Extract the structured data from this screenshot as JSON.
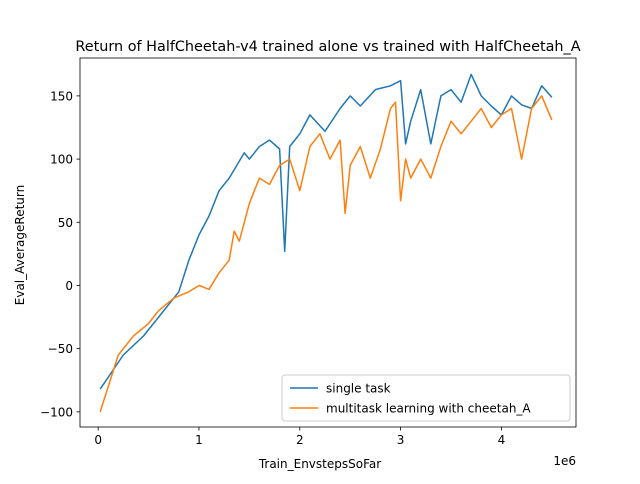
{
  "chart_data": {
    "type": "line",
    "title": "Return of HalfCheetah-v4 trained alone vs trained with HalfCheetah_A",
    "xlabel": "Train_EnvstepsSoFar",
    "ylabel": "Eval_AverageReturn",
    "x_offset_label": "1e6",
    "xlim": [
      -0.18,
      4.74
    ],
    "ylim": [
      -112,
      180
    ],
    "xticks": [
      0,
      1,
      2,
      3,
      4
    ],
    "yticks": [
      -100,
      -50,
      0,
      50,
      100,
      150
    ],
    "grid": false,
    "legend_position": "bottom-right",
    "series": [
      {
        "name": "single task",
        "color": "#1f77b4",
        "x": [
          0.02,
          0.25,
          0.45,
          0.6,
          0.8,
          0.9,
          1.0,
          1.1,
          1.2,
          1.3,
          1.45,
          1.5,
          1.6,
          1.7,
          1.8,
          1.85,
          1.9,
          2.0,
          2.1,
          2.25,
          2.4,
          2.5,
          2.6,
          2.75,
          2.9,
          3.0,
          3.05,
          3.1,
          3.2,
          3.3,
          3.4,
          3.5,
          3.6,
          3.7,
          3.8,
          3.9,
          4.0,
          4.1,
          4.2,
          4.3,
          4.4,
          4.5
        ],
        "y": [
          -82,
          -55,
          -40,
          -25,
          -5,
          20,
          40,
          55,
          75,
          85,
          105,
          100,
          110,
          115,
          108,
          27,
          110,
          120,
          135,
          122,
          140,
          150,
          142,
          155,
          158,
          162,
          112,
          130,
          155,
          112,
          150,
          155,
          145,
          167,
          150,
          142,
          135,
          150,
          143,
          140,
          158,
          149
        ]
      },
      {
        "name": "multitask learning with cheetah_A",
        "color": "#ff7f0e",
        "x": [
          0.02,
          0.2,
          0.35,
          0.5,
          0.6,
          0.75,
          0.9,
          1.0,
          1.1,
          1.2,
          1.3,
          1.35,
          1.4,
          1.5,
          1.55,
          1.6,
          1.7,
          1.8,
          1.9,
          2.0,
          2.1,
          2.2,
          2.3,
          2.4,
          2.45,
          2.5,
          2.6,
          2.7,
          2.8,
          2.9,
          2.95,
          3.0,
          3.05,
          3.1,
          3.2,
          3.3,
          3.4,
          3.5,
          3.6,
          3.7,
          3.8,
          3.9,
          4.0,
          4.1,
          4.2,
          4.3,
          4.4,
          4.5
        ],
        "y": [
          -100,
          -55,
          -40,
          -30,
          -20,
          -10,
          -5,
          0,
          -3,
          10,
          20,
          43,
          35,
          65,
          75,
          85,
          80,
          95,
          100,
          75,
          110,
          120,
          100,
          115,
          57,
          95,
          110,
          85,
          108,
          140,
          145,
          67,
          100,
          85,
          100,
          85,
          110,
          130,
          120,
          130,
          140,
          125,
          135,
          140,
          100,
          140,
          150,
          131
        ]
      }
    ]
  }
}
